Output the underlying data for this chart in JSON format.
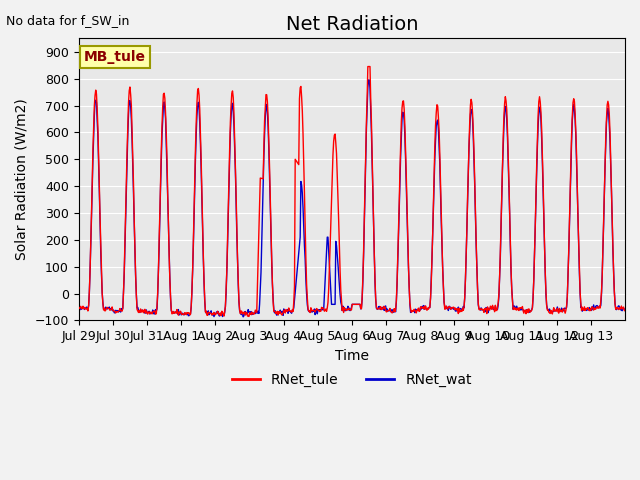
{
  "title": "Net Radiation",
  "xlabel": "Time",
  "ylabel": "Solar Radiation (W/m2)",
  "annotation_text": "No data for f_SW_in",
  "station_label": "MB_tule",
  "ylim": [
    -100,
    950
  ],
  "yticks": [
    -100,
    0,
    100,
    200,
    300,
    400,
    500,
    600,
    700,
    800,
    900
  ],
  "xtick_labels": [
    "Jul 29",
    "Jul 30",
    "Jul 31",
    "Aug 1",
    "Aug 2",
    "Aug 3",
    "Aug 4",
    "Aug 5",
    "Aug 6",
    "Aug 7",
    "Aug 8",
    "Aug 9",
    "Aug 10",
    "Aug 11",
    "Aug 12",
    "Aug 13"
  ],
  "color_tule": "#FF0000",
  "color_wat": "#0000CC",
  "legend_labels": [
    "RNet_tule",
    "RNet_wat"
  ],
  "bg_color": "#E8E8E8",
  "title_fontsize": 14,
  "label_fontsize": 10,
  "tick_fontsize": 9,
  "station_box_color": "#FFFFAA",
  "station_box_edgecolor": "#999900"
}
